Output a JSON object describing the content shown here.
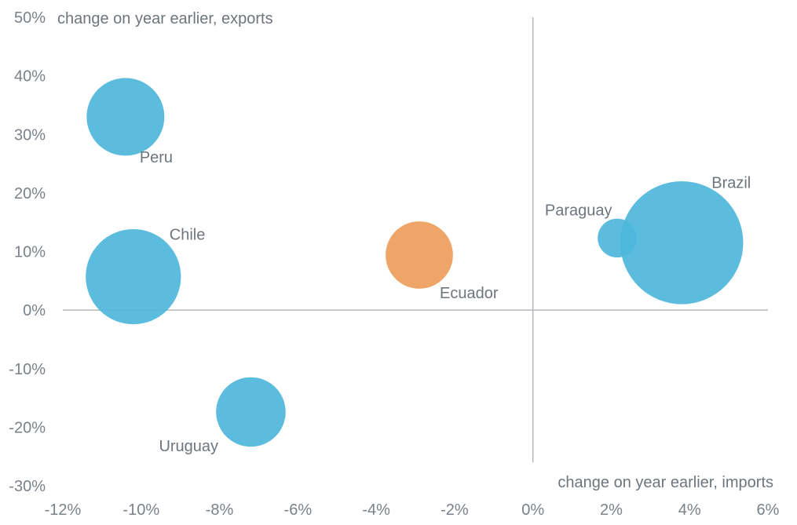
{
  "chart_data": {
    "type": "scatter",
    "title": "",
    "xlabel": "change on year earlier, imports",
    "ylabel": "change on year earlier, exports",
    "xlim": [
      -12,
      6
    ],
    "ylim": [
      -30,
      50
    ],
    "x_ticks": [
      -12,
      -10,
      -8,
      -6,
      -4,
      -2,
      0,
      2,
      4,
      6
    ],
    "y_ticks": [
      50,
      40,
      30,
      20,
      10,
      0,
      -10,
      -20,
      -30
    ],
    "x_tick_labels": [
      "-12%",
      "-10%",
      "-8%",
      "-6%",
      "-4%",
      "-2%",
      "0%",
      "2%",
      "4%",
      "6%"
    ],
    "y_tick_labels": [
      "50%",
      "40%",
      "30%",
      "20%",
      "10%",
      "0%",
      "-10%",
      "-20%",
      "-30%"
    ],
    "grid": false,
    "series": [
      {
        "name": "Peru",
        "x": -10.4,
        "y": 33.0,
        "size": 2.0,
        "color": "#4db6db",
        "label_color": "#6f757c"
      },
      {
        "name": "Chile",
        "x": -10.2,
        "y": 5.7,
        "size": 3.0,
        "color": "#4db6db",
        "label_color": "#6f757c"
      },
      {
        "name": "Uruguay",
        "x": -7.2,
        "y": -17.4,
        "size": 1.6,
        "color": "#4db6db",
        "label_color": "#6f757c"
      },
      {
        "name": "Ecuador",
        "x": -2.9,
        "y": 9.4,
        "size": 1.5,
        "color": "#eea05f",
        "label_color": "#e67e22"
      },
      {
        "name": "Paraguay",
        "x": 2.15,
        "y": 12.3,
        "size": 0.5,
        "color": "#4db6db",
        "label_color": "#6f757c"
      },
      {
        "name": "Brazil",
        "x": 3.8,
        "y": 11.5,
        "size": 5.0,
        "color": "#4db6db",
        "label_color": "#6f757c"
      }
    ]
  }
}
